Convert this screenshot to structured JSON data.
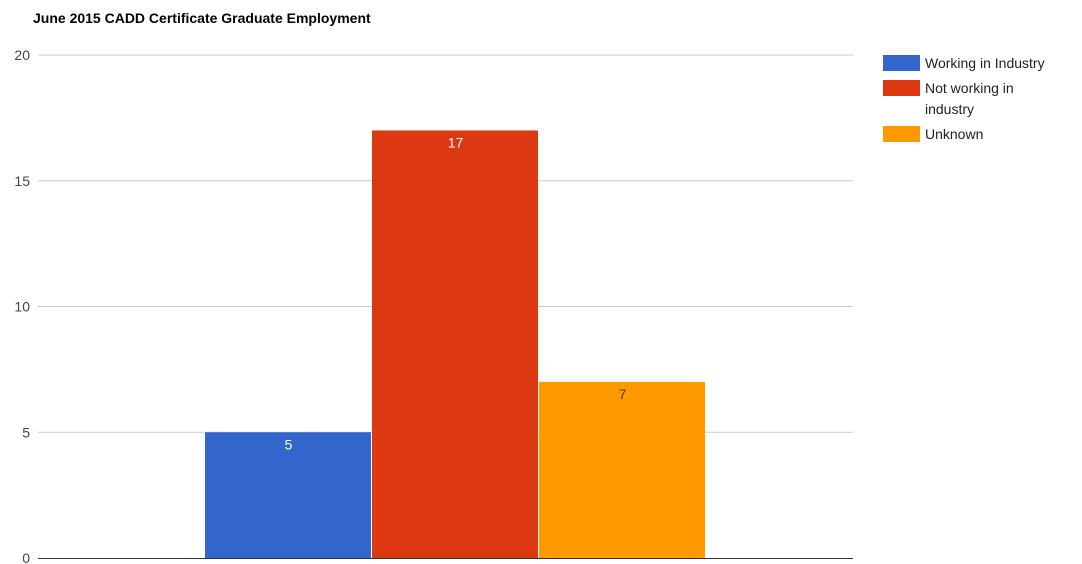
{
  "chart_data": {
    "type": "bar",
    "title": "June 2015 CADD Certificate Graduate Employment",
    "xlabel": "",
    "ylabel": "",
    "ylim": [
      0,
      20
    ],
    "yticks": [
      0,
      5,
      10,
      15,
      20
    ],
    "grid": true,
    "legend_position": "right",
    "series": [
      {
        "name": "Working in Industry",
        "value": 5,
        "color": "#3366CC",
        "label_color": "#ffffff",
        "legend_lines": [
          "Working in Industry"
        ]
      },
      {
        "name": "Not working in industry",
        "value": 17,
        "color": "#DC3912",
        "label_color": "#ffffff",
        "legend_lines": [
          "Not working in",
          "industry"
        ]
      },
      {
        "name": "Unknown",
        "value": 7,
        "color": "#FF9900",
        "label_color": "#444444",
        "legend_lines": [
          "Unknown"
        ]
      }
    ]
  }
}
